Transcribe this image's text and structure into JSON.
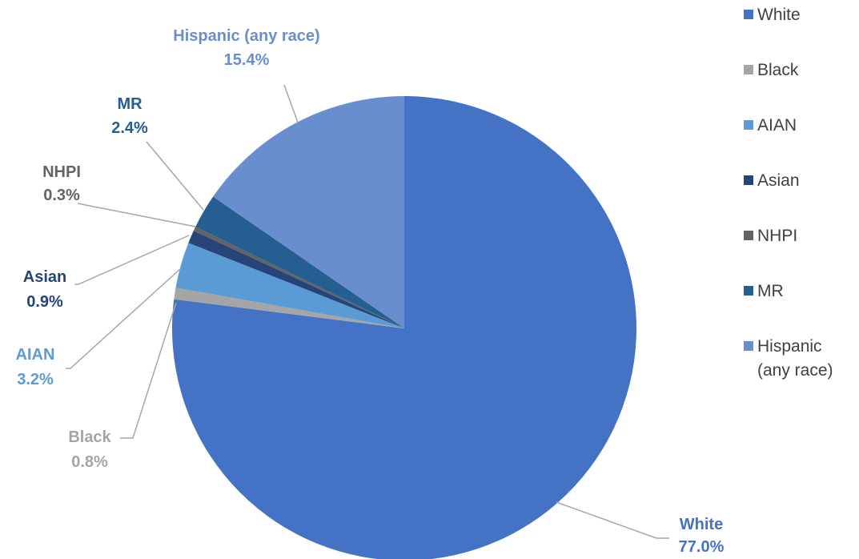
{
  "chart_data": {
    "type": "pie",
    "legend_position": "right",
    "start": "12 o'clock",
    "direction": "clockwise",
    "slices": [
      {
        "name": "White",
        "value": 77.0,
        "label": "77.0%",
        "color": "#4472C4",
        "label_color": "#4472C4"
      },
      {
        "name": "Black",
        "value": 0.8,
        "label": "0.8%",
        "color": "#A5A5A5",
        "label_color": "#A5A5A5"
      },
      {
        "name": "AIAN",
        "value": 3.2,
        "label": "3.2%",
        "color": "#5B9BD5",
        "label_color": "#5B9BD5"
      },
      {
        "name": "Asian",
        "value": 0.9,
        "label": "0.9%",
        "color": "#264478",
        "label_color": "#264478"
      },
      {
        "name": "NHPI",
        "value": 0.3,
        "label": "0.3%",
        "color": "#636363",
        "label_color": "#636363"
      },
      {
        "name": "MR",
        "value": 2.4,
        "label": "2.4%",
        "color": "#255E91",
        "label_color": "#255E91"
      },
      {
        "name": "Hispanic (any race)",
        "value": 15.4,
        "label": "15.4%",
        "color": "#698ED0",
        "label_color": "#698ED0"
      }
    ],
    "legend_entries": [
      {
        "lines": [
          "White"
        ]
      },
      {
        "lines": [
          "Black"
        ]
      },
      {
        "lines": [
          "AIAN"
        ]
      },
      {
        "lines": [
          "Asian"
        ]
      },
      {
        "lines": [
          "NHPI"
        ]
      },
      {
        "lines": [
          "MR"
        ]
      },
      {
        "lines": [
          "Hispanic",
          "(any race)"
        ]
      }
    ]
  }
}
